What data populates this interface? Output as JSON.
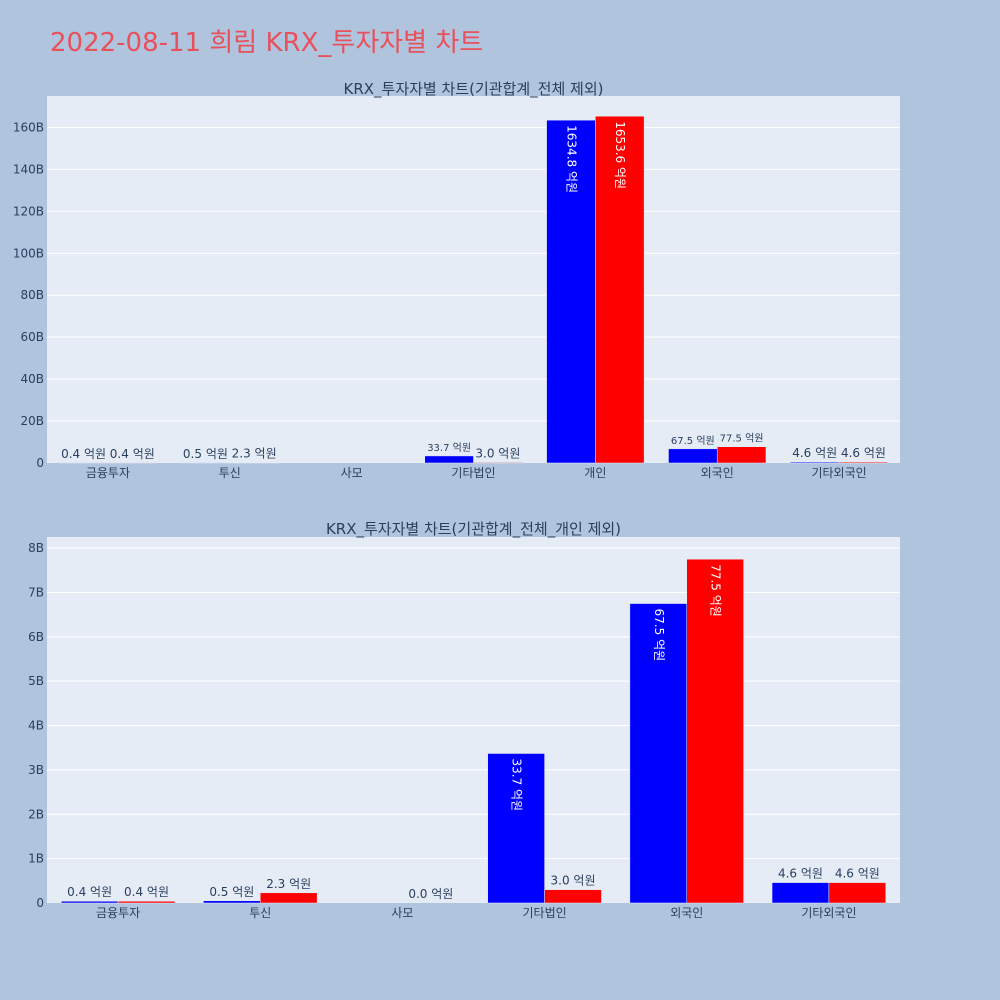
{
  "page_title": "2022-08-11 희림 KRX_투자자별 차트",
  "colors": {
    "background": "#b0c4de",
    "plot_bg": "#e5ecf6",
    "grid": "#ffffff",
    "title": "#e8505b",
    "text": "#2a3f5f",
    "buy": "#0000ff",
    "sell": "#ff0000"
  },
  "chart_data": [
    {
      "type": "bar",
      "title": "KRX_투자자별 차트(기관합계_전체 제외)",
      "categories": [
        "금융투자",
        "투신",
        "사모",
        "기타법인",
        "개인",
        "외국인",
        "기타외국인"
      ],
      "ylim": [
        0,
        175
      ],
      "yticks": [
        0,
        20,
        40,
        60,
        80,
        100,
        120,
        140,
        160
      ],
      "ytick_labels": [
        "0",
        "20B",
        "40B",
        "60B",
        "80B",
        "100B",
        "120B",
        "140B",
        "160B"
      ],
      "grid": true,
      "series": [
        {
          "color": "#0000ff",
          "values": [
            0.04,
            0.05,
            0,
            3.37,
            163.48,
            6.75,
            0.46
          ],
          "labels": [
            "0.4 억원",
            "0.5 억원",
            "",
            "33.7 억원",
            "1634.8 억원",
            "67.5 억원",
            "4.6 억원"
          ]
        },
        {
          "color": "#ff0000",
          "values": [
            0.04,
            0.23,
            0,
            0.3,
            165.36,
            7.75,
            0.46
          ],
          "labels": [
            "0.4 억원",
            "2.3 억원",
            "",
            "3.0 억원",
            "1653.6 억원",
            "77.5 억원",
            "4.6 억원"
          ]
        }
      ]
    },
    {
      "type": "bar",
      "title": "KRX_투자자별 차트(기관합계_전체_개인 제외)",
      "categories": [
        "금융투자",
        "투신",
        "사모",
        "기타법인",
        "외국인",
        "기타외국인"
      ],
      "ylim": [
        0,
        8.25
      ],
      "yticks": [
        0,
        1,
        2,
        3,
        4,
        5,
        6,
        7,
        8
      ],
      "ytick_labels": [
        "0",
        "1B",
        "2B",
        "3B",
        "4B",
        "5B",
        "6B",
        "7B",
        "8B"
      ],
      "grid": true,
      "series": [
        {
          "color": "#0000ff",
          "values": [
            0.04,
            0.05,
            0,
            3.37,
            6.75,
            0.46
          ],
          "labels": [
            "0.4 억원",
            "0.5 억원",
            "",
            "33.7 억원",
            "67.5 억원",
            "4.6 억원"
          ]
        },
        {
          "color": "#ff0000",
          "values": [
            0.04,
            0.23,
            0,
            0.3,
            7.75,
            0.46
          ],
          "labels": [
            "0.4 억원",
            "2.3 억원",
            "0.0 억원",
            "3.0 억원",
            "77.5 억원",
            "4.6 억원"
          ]
        }
      ]
    }
  ]
}
